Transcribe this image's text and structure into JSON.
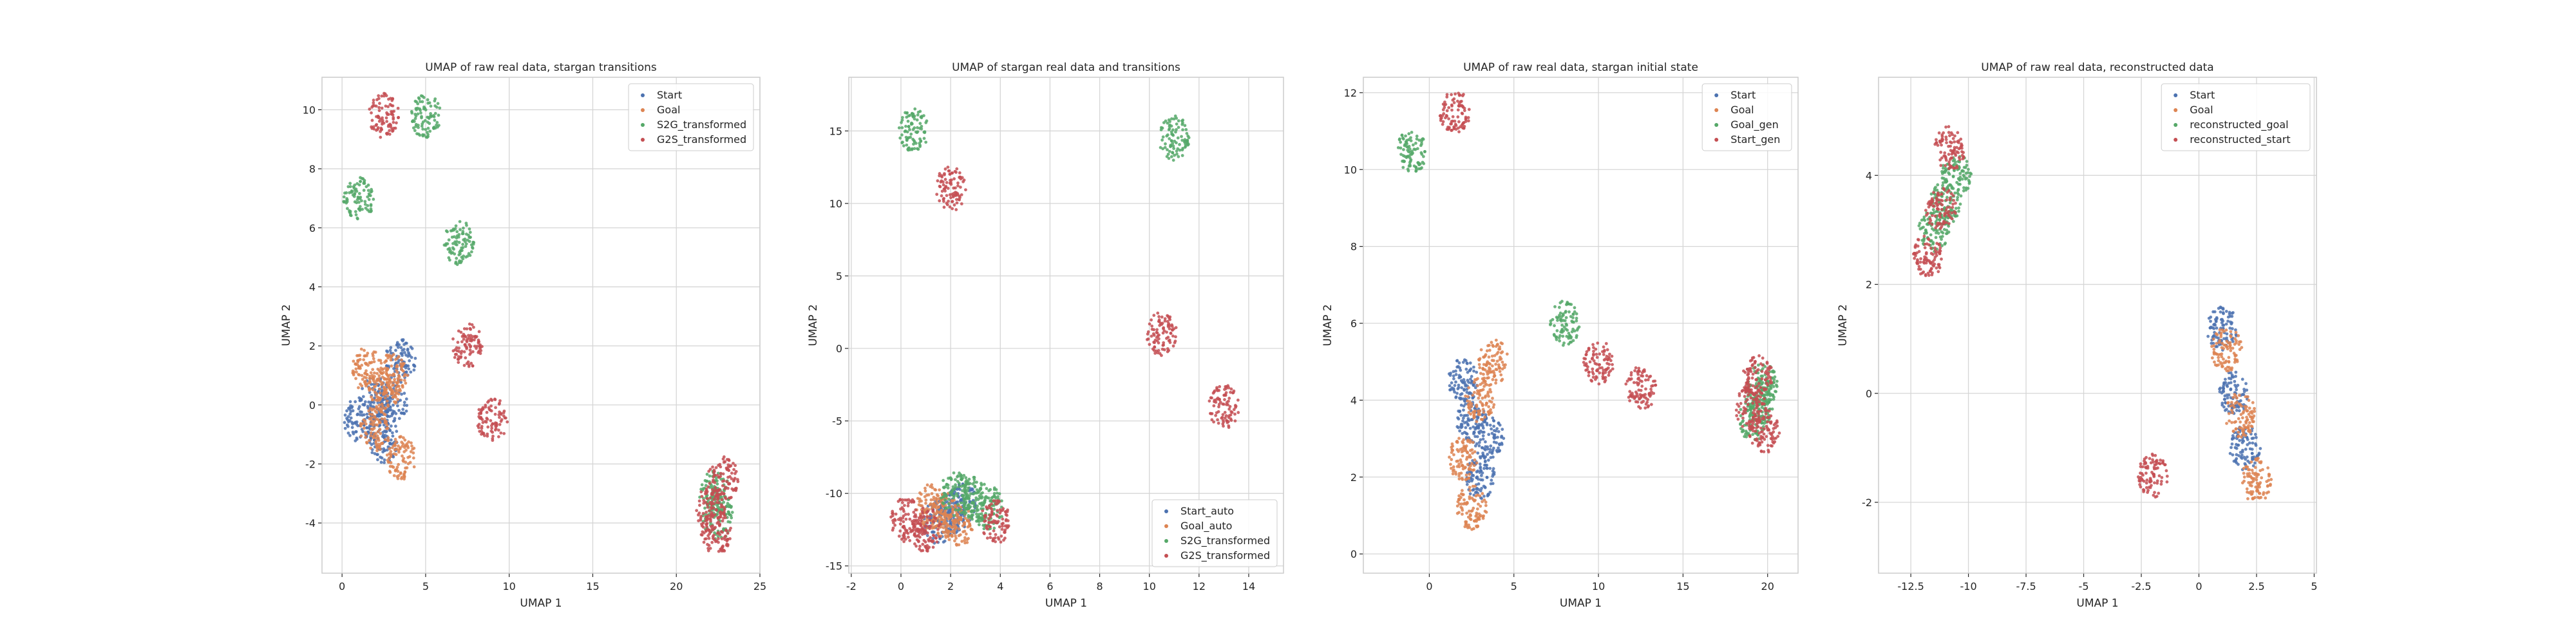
{
  "chart_data": [
    {
      "type": "scatter",
      "title": "UMAP of raw real data, stargan transitions",
      "xlabel": "UMAP 1",
      "ylabel": "UMAP 2",
      "xlim": [
        -1.2,
        25
      ],
      "ylim": [
        -5.7,
        11.1
      ],
      "xticks": [
        0,
        5,
        10,
        15,
        20,
        25
      ],
      "yticks": [
        -4,
        -2,
        0,
        2,
        4,
        6,
        8,
        10
      ],
      "legend_position": "upper right",
      "grid": true,
      "series": [
        {
          "name": "Start",
          "color": "#4c72b0",
          "centroids": [
            [
              2.0,
              0.2
            ],
            [
              2.5,
              -1.2
            ],
            [
              3.5,
              1.5
            ],
            [
              1.0,
              -0.5
            ],
            [
              3.0,
              0.0
            ]
          ]
        },
        {
          "name": "Goal",
          "color": "#dd8452",
          "centroids": [
            [
              2.0,
              -0.8
            ],
            [
              3.0,
              1.0
            ],
            [
              1.5,
              1.2
            ],
            [
              3.5,
              -1.8
            ],
            [
              2.5,
              0.5
            ]
          ]
        },
        {
          "name": "S2G_transformed",
          "color": "#55a868",
          "centroids": [
            [
              22.3,
              -3.0
            ],
            [
              22.5,
              -3.8
            ],
            [
              1.0,
              7.0
            ],
            [
              5.0,
              9.8
            ],
            [
              7.0,
              5.5
            ]
          ]
        },
        {
          "name": "G2S_transformed",
          "color": "#c44e52",
          "centroids": [
            [
              22.0,
              -3.5
            ],
            [
              22.8,
              -2.5
            ],
            [
              22.4,
              -4.3
            ],
            [
              2.5,
              9.8
            ],
            [
              7.5,
              2.0
            ],
            [
              9.0,
              -0.5
            ]
          ]
        }
      ]
    },
    {
      "type": "scatter",
      "title": "UMAP of stargan real data and transitions",
      "xlabel": "UMAP 1",
      "ylabel": "UMAP 2",
      "xlim": [
        -2.1,
        15.4
      ],
      "ylim": [
        -15.5,
        18.7
      ],
      "xticks": [
        -2,
        0,
        2,
        4,
        6,
        8,
        10,
        12,
        14
      ],
      "yticks": [
        -15,
        -10,
        -5,
        0,
        5,
        10,
        15
      ],
      "legend_position": "lower right",
      "grid": true,
      "series": [
        {
          "name": "Start_auto",
          "color": "#4c72b0",
          "centroids": [
            [
              2.0,
              -11.3
            ],
            [
              1.5,
              -12.0
            ],
            [
              2.5,
              -10.8
            ]
          ]
        },
        {
          "name": "Goal_auto",
          "color": "#dd8452",
          "centroids": [
            [
              1.8,
              -11.5
            ],
            [
              2.3,
              -12.2
            ],
            [
              1.2,
              -10.9
            ]
          ]
        },
        {
          "name": "S2G_transformed",
          "color": "#55a868",
          "centroids": [
            [
              3.0,
              -10.4
            ],
            [
              2.2,
              -10.0
            ],
            [
              3.5,
              -11.0
            ],
            [
              0.5,
              15.0
            ],
            [
              11.0,
              14.5
            ]
          ]
        },
        {
          "name": "G2S_transformed",
          "color": "#c44e52",
          "centroids": [
            [
              1.0,
              -12.5
            ],
            [
              0.2,
              -11.8
            ],
            [
              3.8,
              -12.0
            ],
            [
              2.0,
              11.0
            ],
            [
              10.5,
              1.0
            ],
            [
              13.0,
              -4.0
            ]
          ]
        }
      ]
    },
    {
      "type": "scatter",
      "title": "UMAP of raw real data, stargan initial state",
      "xlabel": "UMAP 1",
      "ylabel": "UMAP 2",
      "xlim": [
        -3.9,
        21.8
      ],
      "ylim": [
        -0.5,
        12.4
      ],
      "xticks": [
        0,
        5,
        10,
        15,
        20
      ],
      "yticks": [
        0,
        2,
        4,
        6,
        8,
        10,
        12
      ],
      "legend_position": "upper right",
      "grid": true,
      "series": [
        {
          "name": "Start",
          "color": "#4c72b0",
          "centroids": [
            [
              2.5,
              3.5
            ],
            [
              3.0,
              2.0
            ],
            [
              2.0,
              4.5
            ],
            [
              3.5,
              3.0
            ]
          ]
        },
        {
          "name": "Goal",
          "color": "#dd8452",
          "centroids": [
            [
              2.0,
              2.5
            ],
            [
              3.0,
              4.0
            ],
            [
              2.5,
              1.2
            ],
            [
              3.8,
              5.0
            ]
          ]
        },
        {
          "name": "Goal_gen",
          "color": "#55a868",
          "centroids": [
            [
              19.5,
              4.0
            ],
            [
              19.2,
              3.5
            ],
            [
              19.7,
              4.4
            ],
            [
              -1.0,
              10.5
            ],
            [
              8.0,
              6.0
            ]
          ]
        },
        {
          "name": "Start_gen",
          "color": "#c44e52",
          "centroids": [
            [
              19.0,
              3.8
            ],
            [
              19.8,
              3.2
            ],
            [
              19.4,
              4.6
            ],
            [
              1.5,
              11.5
            ],
            [
              10.0,
              5.0
            ],
            [
              12.5,
              4.3
            ]
          ]
        }
      ]
    },
    {
      "type": "scatter",
      "title": "UMAP of raw real data, reconstructed data",
      "xlabel": "UMAP 1",
      "ylabel": "UMAP 2",
      "xlim": [
        -13.9,
        5.1
      ],
      "ylim": [
        -3.3,
        5.8
      ],
      "xticks": [
        -12.5,
        -10.0,
        -7.5,
        -5.0,
        -2.5,
        0.0,
        2.5,
        5.0
      ],
      "yticks": [
        -2,
        0,
        2,
        4
      ],
      "legend_position": "upper right",
      "grid": true,
      "series": [
        {
          "name": "Start",
          "color": "#4c72b0",
          "centroids": [
            [
              1.5,
              0.0
            ],
            [
              2.0,
              -1.0
            ],
            [
              1.0,
              1.2
            ]
          ]
        },
        {
          "name": "Goal",
          "color": "#dd8452",
          "centroids": [
            [
              1.8,
              -0.4
            ],
            [
              1.2,
              0.8
            ],
            [
              2.5,
              -1.6
            ]
          ]
        },
        {
          "name": "reconstructed_goal",
          "color": "#55a868",
          "centroids": [
            [
              -11.0,
              3.5
            ],
            [
              -11.5,
              3.0
            ],
            [
              -10.5,
              4.0
            ]
          ]
        },
        {
          "name": "reconstructed_start",
          "color": "#c44e52",
          "centroids": [
            [
              -11.2,
              3.4
            ],
            [
              -11.8,
              2.5
            ],
            [
              -10.8,
              4.5
            ],
            [
              -2.0,
              -1.5
            ]
          ]
        }
      ]
    }
  ]
}
